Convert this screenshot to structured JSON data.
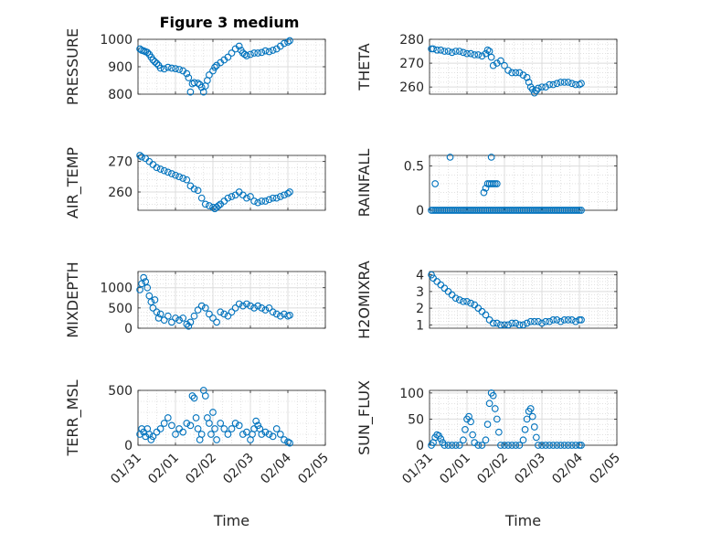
{
  "figure_title": "Figure 3 medium",
  "marker_color": "#0072bd",
  "chart_data": [
    {
      "type": "scatter",
      "id": "pressure",
      "ylabel": "PRESSURE",
      "ylim": [
        800,
        1000
      ],
      "yticks": [
        800,
        900,
        1000
      ],
      "xlim": [
        0,
        5
      ],
      "xticks": [
        "01/31",
        "02/01",
        "02/02",
        "02/03",
        "02/04",
        "02/05"
      ],
      "xticks_shown": false,
      "xlabel": "",
      "grid": true,
      "minor_grid": true,
      "series": [
        {
          "x": [
            0.05,
            0.1,
            0.15,
            0.2,
            0.25,
            0.3,
            0.35,
            0.4,
            0.45,
            0.5,
            0.55,
            0.6,
            0.7,
            0.8,
            0.9,
            1.0,
            1.1,
            1.2,
            1.3,
            1.35,
            1.4,
            1.45,
            1.5,
            1.6,
            1.65,
            1.7,
            1.75,
            1.8,
            1.85,
            1.9,
            2.0,
            2.05,
            2.1,
            2.2,
            2.3,
            2.4,
            2.5,
            2.6,
            2.7,
            2.75,
            2.8,
            2.85,
            2.9,
            3.0,
            3.1,
            3.2,
            3.3,
            3.4,
            3.5,
            3.6,
            3.7,
            3.8,
            3.9,
            4.0,
            4.05
          ],
          "y": [
            965,
            960,
            958,
            955,
            952,
            945,
            935,
            925,
            918,
            912,
            905,
            895,
            892,
            898,
            895,
            893,
            890,
            885,
            875,
            860,
            808,
            838,
            842,
            840,
            835,
            825,
            808,
            830,
            850,
            870,
            885,
            898,
            905,
            915,
            925,
            935,
            950,
            965,
            975,
            960,
            950,
            945,
            940,
            945,
            950,
            950,
            952,
            958,
            955,
            960,
            965,
            975,
            985,
            990,
            995
          ]
        }
      ]
    },
    {
      "type": "scatter",
      "id": "theta",
      "ylabel": "THETA",
      "ylim": [
        257,
        280
      ],
      "yticks": [
        260,
        270,
        280
      ],
      "xlim": [
        0,
        5
      ],
      "xticks": [
        "01/31",
        "02/01",
        "02/02",
        "02/03",
        "02/04",
        "02/05"
      ],
      "xticks_shown": false,
      "xlabel": "",
      "grid": true,
      "minor_grid": true,
      "series": [
        {
          "x": [
            0.05,
            0.1,
            0.2,
            0.3,
            0.4,
            0.5,
            0.6,
            0.7,
            0.8,
            0.9,
            1.0,
            1.1,
            1.2,
            1.3,
            1.4,
            1.5,
            1.55,
            1.6,
            1.65,
            1.7,
            1.8,
            1.9,
            2.0,
            2.1,
            2.2,
            2.3,
            2.4,
            2.5,
            2.6,
            2.65,
            2.7,
            2.75,
            2.8,
            2.85,
            2.9,
            3.0,
            3.1,
            3.2,
            3.3,
            3.4,
            3.5,
            3.6,
            3.7,
            3.8,
            3.9,
            4.0,
            4.05
          ],
          "y": [
            276,
            276,
            275.5,
            275.5,
            275,
            275,
            274.5,
            275,
            275,
            274.5,
            274,
            274,
            273.5,
            273.5,
            273,
            274,
            275.5,
            275,
            272.5,
            269,
            270,
            271,
            269,
            267,
            266,
            266,
            266,
            265,
            264,
            262,
            260,
            259,
            257.5,
            258.5,
            259.5,
            260,
            260,
            261,
            261,
            261.5,
            262,
            262,
            262,
            261.5,
            261,
            261,
            261.5
          ]
        }
      ]
    },
    {
      "type": "scatter",
      "id": "air_temp",
      "ylabel": "AIR_TEMP",
      "ylim": [
        254,
        272
      ],
      "yticks": [
        260,
        270
      ],
      "xlim": [
        0,
        5
      ],
      "xticks": [
        "01/31",
        "02/01",
        "02/02",
        "02/03",
        "02/04",
        "02/05"
      ],
      "xticks_shown": false,
      "xlabel": "",
      "grid": true,
      "minor_grid": true,
      "series": [
        {
          "x": [
            0.05,
            0.1,
            0.2,
            0.3,
            0.4,
            0.5,
            0.6,
            0.7,
            0.8,
            0.9,
            1.0,
            1.1,
            1.2,
            1.3,
            1.4,
            1.5,
            1.6,
            1.7,
            1.8,
            1.9,
            2.0,
            2.05,
            2.1,
            2.15,
            2.2,
            2.3,
            2.4,
            2.5,
            2.6,
            2.7,
            2.8,
            2.9,
            3.0,
            3.1,
            3.2,
            3.3,
            3.4,
            3.5,
            3.6,
            3.7,
            3.8,
            3.9,
            4.0,
            4.05
          ],
          "y": [
            272,
            271.5,
            271,
            270,
            269,
            268,
            267.5,
            267,
            266.5,
            266,
            265.5,
            265,
            264.5,
            264,
            262,
            261,
            260.5,
            258,
            256,
            255.5,
            255,
            254.5,
            255,
            255.5,
            256,
            257,
            258,
            258.5,
            259,
            260,
            259,
            258,
            258.5,
            257,
            256.5,
            257,
            257,
            257.5,
            258,
            258,
            258.5,
            259,
            259.5,
            260
          ]
        }
      ]
    },
    {
      "type": "scatter",
      "id": "rainfall",
      "ylabel": "RAINFALL",
      "ylim": [
        0,
        0.62
      ],
      "yticks": [
        0,
        0.5
      ],
      "xlim": [
        0,
        5
      ],
      "xticks": [
        "01/31",
        "02/01",
        "02/02",
        "02/03",
        "02/04",
        "02/05"
      ],
      "xticks_shown": false,
      "xlabel": "",
      "grid": true,
      "minor_grid": true,
      "series": [
        {
          "x": [
            0.05,
            0.1,
            0.15,
            0.2,
            0.25,
            0.3,
            0.35,
            0.4,
            0.45,
            0.5,
            0.55,
            0.6,
            0.65,
            0.7,
            0.75,
            0.8,
            0.85,
            0.9,
            0.95,
            1.0,
            1.05,
            1.1,
            1.15,
            1.2,
            1.25,
            1.3,
            1.35,
            1.4,
            1.45,
            1.5,
            1.55,
            1.6,
            1.65,
            1.7,
            1.75,
            1.8,
            1.85,
            1.9,
            1.95,
            2.0,
            2.05,
            2.1,
            2.15,
            2.2,
            2.25,
            2.3,
            2.35,
            2.4,
            2.45,
            2.5,
            2.55,
            2.6,
            2.65,
            2.7,
            2.75,
            2.8,
            2.85,
            2.9,
            2.95,
            3.0,
            3.05,
            3.1,
            3.15,
            3.2,
            3.25,
            3.3,
            3.35,
            3.4,
            3.45,
            3.5,
            3.55,
            3.6,
            3.65,
            3.7,
            3.75,
            3.8,
            3.85,
            3.9,
            3.95,
            4.0,
            4.05,
            0.15,
            0.55,
            1.45,
            1.5,
            1.55,
            1.6,
            1.65,
            1.7,
            1.75,
            1.8,
            1.65
          ],
          "y": [
            0,
            0,
            0,
            0,
            0,
            0,
            0,
            0,
            0,
            0,
            0,
            0,
            0,
            0,
            0,
            0,
            0,
            0,
            0,
            0,
            0,
            0,
            0,
            0,
            0,
            0,
            0,
            0,
            0,
            0,
            0,
            0,
            0,
            0,
            0,
            0,
            0,
            0,
            0,
            0,
            0,
            0,
            0,
            0,
            0,
            0,
            0,
            0,
            0,
            0,
            0,
            0,
            0,
            0,
            0,
            0,
            0,
            0,
            0,
            0,
            0,
            0,
            0,
            0,
            0,
            0,
            0,
            0,
            0,
            0,
            0,
            0,
            0,
            0,
            0,
            0,
            0,
            0,
            0,
            0,
            0,
            0.3,
            0.6,
            0.2,
            0.25,
            0.3,
            0.3,
            0.3,
            0.3,
            0.3,
            0.3,
            0.6
          ]
        }
      ]
    },
    {
      "type": "scatter",
      "id": "mixdepth",
      "ylabel": "MIXDEPTH",
      "ylim": [
        0,
        1400
      ],
      "yticks": [
        0,
        500,
        1000
      ],
      "xlim": [
        0,
        5
      ],
      "xticks": [
        "01/31",
        "02/01",
        "02/02",
        "02/03",
        "02/04",
        "02/05"
      ],
      "xticks_shown": false,
      "xlabel": "",
      "grid": true,
      "minor_grid": true,
      "series": [
        {
          "x": [
            0.05,
            0.1,
            0.15,
            0.2,
            0.25,
            0.3,
            0.35,
            0.4,
            0.45,
            0.5,
            0.55,
            0.6,
            0.7,
            0.8,
            0.9,
            1.0,
            1.1,
            1.2,
            1.3,
            1.35,
            1.4,
            1.5,
            1.6,
            1.7,
            1.8,
            1.9,
            2.0,
            2.1,
            2.2,
            2.3,
            2.4,
            2.5,
            2.6,
            2.7,
            2.8,
            2.9,
            3.0,
            3.1,
            3.2,
            3.3,
            3.4,
            3.5,
            3.6,
            3.7,
            3.8,
            3.9,
            4.0,
            4.05
          ],
          "y": [
            950,
            1100,
            1250,
            1150,
            1000,
            800,
            650,
            500,
            700,
            400,
            250,
            350,
            200,
            300,
            150,
            250,
            200,
            250,
            100,
            50,
            150,
            300,
            450,
            550,
            500,
            350,
            250,
            150,
            400,
            350,
            300,
            400,
            500,
            600,
            550,
            600,
            550,
            500,
            550,
            500,
            450,
            500,
            400,
            350,
            300,
            350,
            300,
            320
          ]
        }
      ]
    },
    {
      "type": "scatter",
      "id": "h2omixra",
      "ylabel": "H2OMIXRA",
      "ylim": [
        0.8,
        4.2
      ],
      "yticks": [
        1,
        2,
        3,
        4
      ],
      "xlim": [
        0,
        5
      ],
      "xticks": [
        "01/31",
        "02/01",
        "02/02",
        "02/03",
        "02/04",
        "02/05"
      ],
      "xticks_shown": false,
      "xlabel": "",
      "grid": true,
      "minor_grid": true,
      "series": [
        {
          "x": [
            0.05,
            0.1,
            0.2,
            0.3,
            0.4,
            0.5,
            0.6,
            0.7,
            0.8,
            0.9,
            1.0,
            1.1,
            1.2,
            1.3,
            1.4,
            1.5,
            1.6,
            1.7,
            1.8,
            1.9,
            2.0,
            2.1,
            2.2,
            2.3,
            2.4,
            2.5,
            2.6,
            2.7,
            2.8,
            2.9,
            3.0,
            3.1,
            3.2,
            3.3,
            3.4,
            3.5,
            3.6,
            3.7,
            3.8,
            3.9,
            4.0,
            4.05
          ],
          "y": [
            4.0,
            3.8,
            3.6,
            3.4,
            3.2,
            3.0,
            2.8,
            2.6,
            2.5,
            2.4,
            2.4,
            2.3,
            2.2,
            2.0,
            1.8,
            1.6,
            1.3,
            1.1,
            1.1,
            1.0,
            1.0,
            1.0,
            1.1,
            1.1,
            1.0,
            1.0,
            1.1,
            1.2,
            1.2,
            1.2,
            1.1,
            1.2,
            1.2,
            1.3,
            1.3,
            1.2,
            1.3,
            1.3,
            1.3,
            1.2,
            1.3,
            1.3
          ]
        }
      ]
    },
    {
      "type": "scatter",
      "id": "terr_msl",
      "ylabel": "TERR_MSL",
      "ylim": [
        0,
        500
      ],
      "yticks": [
        0,
        500
      ],
      "xlim": [
        0,
        5
      ],
      "xticks": [
        "01/31",
        "02/01",
        "02/02",
        "02/03",
        "02/04",
        "02/05"
      ],
      "xticks_shown": true,
      "xlabel": "Time",
      "grid": true,
      "minor_grid": true,
      "series": [
        {
          "x": [
            0.05,
            0.1,
            0.15,
            0.2,
            0.25,
            0.3,
            0.35,
            0.4,
            0.5,
            0.6,
            0.7,
            0.8,
            0.9,
            1.0,
            1.1,
            1.2,
            1.3,
            1.4,
            1.45,
            1.5,
            1.55,
            1.6,
            1.65,
            1.7,
            1.75,
            1.8,
            1.85,
            1.9,
            1.95,
            2.0,
            2.05,
            2.1,
            2.2,
            2.3,
            2.4,
            2.5,
            2.6,
            2.7,
            2.8,
            2.9,
            3.0,
            3.05,
            3.1,
            3.15,
            3.2,
            3.25,
            3.3,
            3.4,
            3.5,
            3.6,
            3.7,
            3.8,
            3.9,
            4.0,
            4.05
          ],
          "y": [
            100,
            150,
            120,
            80,
            150,
            100,
            50,
            80,
            120,
            150,
            200,
            250,
            180,
            100,
            150,
            120,
            200,
            180,
            450,
            430,
            250,
            150,
            50,
            100,
            500,
            450,
            250,
            200,
            100,
            300,
            150,
            50,
            200,
            150,
            100,
            150,
            200,
            180,
            100,
            120,
            50,
            100,
            150,
            220,
            180,
            150,
            100,
            120,
            100,
            80,
            150,
            100,
            50,
            30,
            20
          ]
        }
      ]
    },
    {
      "type": "scatter",
      "id": "sun_flux",
      "ylabel": "SUN_FLUX",
      "ylim": [
        0,
        105
      ],
      "yticks": [
        0,
        50,
        100
      ],
      "xlim": [
        0,
        5
      ],
      "xticks": [
        "01/31",
        "02/01",
        "02/02",
        "02/03",
        "02/04",
        "02/05"
      ],
      "xticks_shown": true,
      "xlabel": "Time",
      "grid": true,
      "minor_grid": true,
      "series": [
        {
          "x": [
            0.05,
            0.1,
            0.15,
            0.2,
            0.25,
            0.3,
            0.35,
            0.4,
            0.5,
            0.6,
            0.7,
            0.8,
            0.9,
            0.95,
            1.0,
            1.05,
            1.1,
            1.15,
            1.2,
            1.3,
            1.4,
            1.5,
            1.55,
            1.6,
            1.65,
            1.7,
            1.75,
            1.8,
            1.85,
            1.9,
            2.0,
            2.1,
            2.2,
            2.3,
            2.4,
            2.5,
            2.55,
            2.6,
            2.65,
            2.7,
            2.75,
            2.8,
            2.85,
            2.9,
            3.0,
            3.1,
            3.2,
            3.3,
            3.4,
            3.5,
            3.6,
            3.7,
            3.8,
            3.9,
            4.0,
            4.05
          ],
          "y": [
            0,
            5,
            15,
            20,
            18,
            12,
            5,
            0,
            0,
            0,
            0,
            0,
            10,
            30,
            50,
            55,
            45,
            20,
            5,
            0,
            0,
            10,
            40,
            80,
            100,
            95,
            70,
            50,
            25,
            0,
            0,
            0,
            0,
            0,
            0,
            10,
            30,
            50,
            65,
            70,
            55,
            35,
            15,
            0,
            0,
            0,
            0,
            0,
            0,
            0,
            0,
            0,
            0,
            0,
            0,
            0
          ]
        }
      ]
    }
  ]
}
